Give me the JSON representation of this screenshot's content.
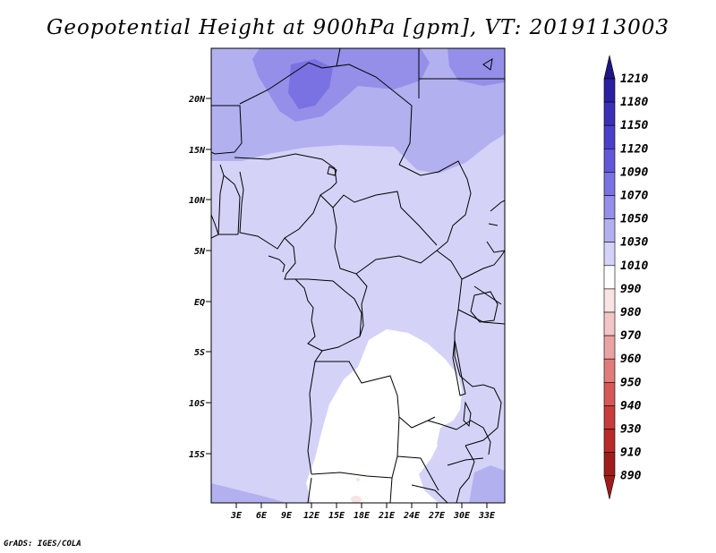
{
  "title": "Geopotential Height at 900hPa [gpm], VT: 2019113003",
  "footer": "GrADS: IGES/COLA",
  "map": {
    "lat_labels": [
      "20N",
      "15N",
      "10N",
      "5N",
      "EQ",
      "5S",
      "10S",
      "15S"
    ],
    "lon_labels": [
      "3E",
      "6E",
      "9E",
      "12E",
      "15E",
      "18E",
      "21E",
      "24E",
      "27E",
      "30E",
      "33E"
    ]
  },
  "colorbar": {
    "labels": [
      "1210",
      "1180",
      "1150",
      "1120",
      "1090",
      "1070",
      "1050",
      "1030",
      "1010",
      "990",
      "980",
      "970",
      "960",
      "950",
      "940",
      "930",
      "910",
      "890"
    ],
    "colors": [
      "#1f1585",
      "#2a20a0",
      "#3a30b8",
      "#4a40c8",
      "#6058d8",
      "#7a72e2",
      "#958fea",
      "#b3b0f0",
      "#d4d3f7",
      "#ffffff",
      "#f8e4e4",
      "#f2c6c6",
      "#eaa2a2",
      "#e07c7c",
      "#d45858",
      "#c83c3c",
      "#b82a2a",
      "#a01c1c"
    ]
  }
}
